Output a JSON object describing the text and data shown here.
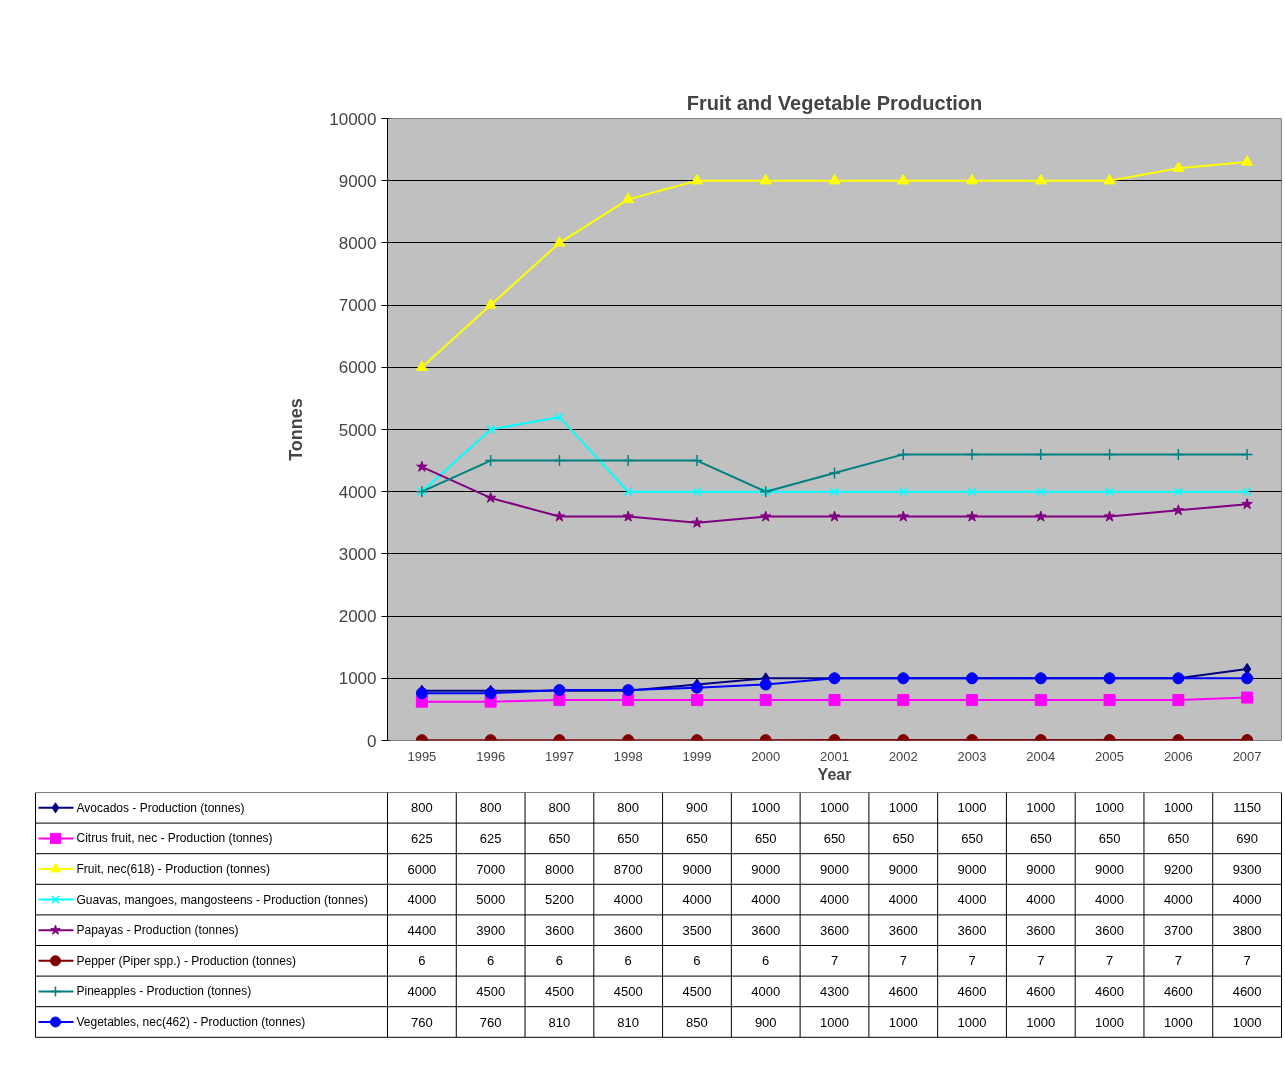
{
  "chart_data": {
    "type": "line",
    "title": "Fruit and Vegetable Production",
    "xlabel": "Year",
    "ylabel": "Tonnes",
    "categories": [
      "1995",
      "1996",
      "1997",
      "1998",
      "1999",
      "2000",
      "2001",
      "2002",
      "2003",
      "2004",
      "2005",
      "2006",
      "2007"
    ],
    "ylim": [
      0,
      10000
    ],
    "yticks": [
      0,
      1000,
      2000,
      3000,
      4000,
      5000,
      6000,
      7000,
      8000,
      9000,
      10000
    ],
    "grid": "y",
    "legend": "bottom",
    "data_labels": true,
    "line_style": "solid",
    "series": [
      {
        "name": "Avocados - Production (tonnes)",
        "color": "#000080",
        "marker": "diamond",
        "values": [
          800,
          800,
          800,
          800,
          900,
          1000,
          1000,
          1000,
          1000,
          1000,
          1000,
          1000,
          1150
        ]
      },
      {
        "name": "Citrus fruit, nec - Production (tonnes)",
        "color": "#ff00ff",
        "marker": "square",
        "values": [
          625,
          625,
          650,
          650,
          650,
          650,
          650,
          650,
          650,
          650,
          650,
          650,
          690
        ]
      },
      {
        "name": "Fruit, nec(618) - Production (tonnes)",
        "color": "#ffff00",
        "marker": "triangle",
        "values": [
          6000,
          7000,
          8000,
          8700,
          9000,
          9000,
          9000,
          9000,
          9000,
          9000,
          9000,
          9200,
          9300
        ]
      },
      {
        "name": "Guavas, mangoes, mangosteens - Production (tonnes)",
        "color": "#00ffff",
        "marker": "x",
        "values": [
          4000,
          5000,
          5200,
          4000,
          4000,
          4000,
          4000,
          4000,
          4000,
          4000,
          4000,
          4000,
          4000
        ]
      },
      {
        "name": "Papayas - Production (tonnes)",
        "color": "#800080",
        "marker": "star",
        "values": [
          4400,
          3900,
          3600,
          3600,
          3500,
          3600,
          3600,
          3600,
          3600,
          3600,
          3600,
          3700,
          3800
        ]
      },
      {
        "name": "Pepper (Piper spp.) - Production (tonnes)",
        "color": "#800000",
        "marker": "circle",
        "values": [
          6,
          6,
          6,
          6,
          6,
          6,
          7,
          7,
          7,
          7,
          7,
          7,
          7
        ]
      },
      {
        "name": "Pineapples - Production (tonnes)",
        "color": "#008080",
        "marker": "cross",
        "values": [
          4000,
          4500,
          4500,
          4500,
          4500,
          4000,
          4300,
          4600,
          4600,
          4600,
          4600,
          4600,
          4600
        ]
      },
      {
        "name": "Vegetables, nec(462) - Production (tonnes)",
        "color": "#0000ff",
        "marker": "circle",
        "values": [
          760,
          760,
          810,
          810,
          850,
          900,
          1000,
          1000,
          1000,
          1000,
          1000,
          1000,
          1000
        ]
      }
    ]
  }
}
